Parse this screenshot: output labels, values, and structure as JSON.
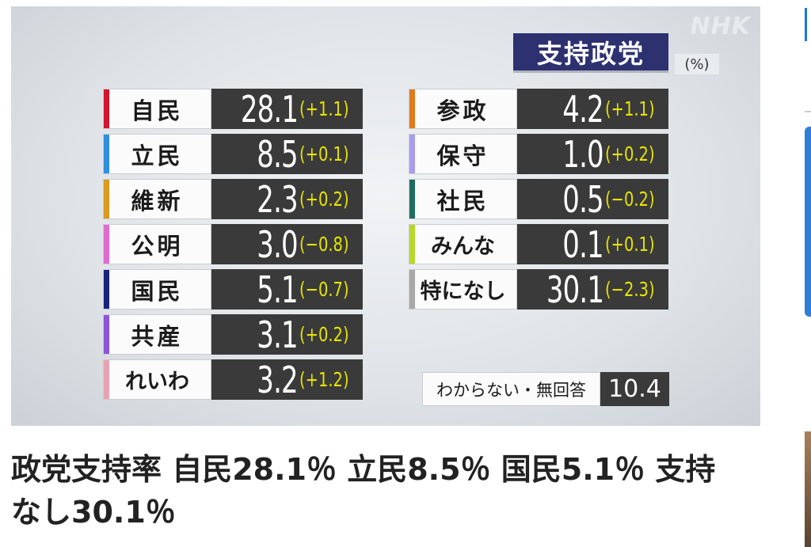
{
  "logo": "NHK",
  "title": "支持政党",
  "unit": "(%)",
  "left_parties": [
    {
      "name": "自民",
      "value": "28.1",
      "change": "(+1.1)",
      "color": "#d4142c"
    },
    {
      "name": "立民",
      "value": "8.5",
      "change": "(+0.1)",
      "color": "#2f8fe0"
    },
    {
      "name": "維新",
      "value": "2.3",
      "change": "(+0.2)",
      "color": "#d99a1e"
    },
    {
      "name": "公明",
      "value": "3.0",
      "change": "(−0.8)",
      "color": "#e06ad0"
    },
    {
      "name": "国民",
      "value": "5.1",
      "change": "(−0.7)",
      "color": "#16247a"
    },
    {
      "name": "共産",
      "value": "3.1",
      "change": "(+0.2)",
      "color": "#8c54d8"
    },
    {
      "name": "れいわ",
      "value": "3.2",
      "change": "(+1.2)",
      "color": "#e9a1b2"
    }
  ],
  "right_parties": [
    {
      "name": "参政",
      "value": "4.2",
      "change": "(+1.1)",
      "color": "#e07a1f"
    },
    {
      "name": "保守",
      "value": "1.0",
      "change": "(+0.2)",
      "color": "#a99cf0"
    },
    {
      "name": "社民",
      "value": "0.5",
      "change": "(−0.2)",
      "color": "#1e6e5e"
    },
    {
      "name": "みんな",
      "value": "0.1",
      "change": "(+0.1)",
      "color": "#b6d72c"
    },
    {
      "name": "特になし",
      "value": "30.1",
      "change": "(−2.3)",
      "color": "#a8a8a8"
    }
  ],
  "unknown": {
    "label": "わからない・無回答",
    "value": "10.4"
  },
  "caption": "政党支持率 自民28.1％ 立民8.5％ 国民5.1％ 支持なし30.1％"
}
